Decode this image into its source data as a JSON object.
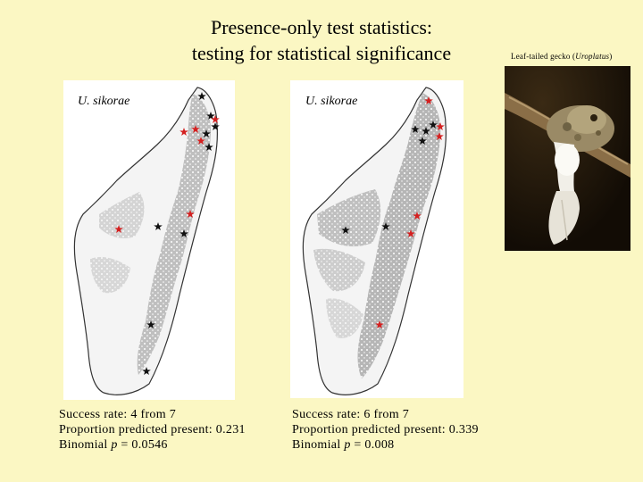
{
  "title": {
    "line1": "Presence-only test statistics:",
    "line2": "testing for statistical significance"
  },
  "photo": {
    "caption_prefix": "Leaf-tailed gecko (",
    "caption_genus": "Uroplatus",
    "caption_suffix": ")"
  },
  "maps": [
    {
      "label": "U. sikorae",
      "stats": {
        "success": "Success rate: 4 from 7",
        "proportion": "Proportion predicted present: 0.231",
        "binomial_prefix": "Binomial ",
        "binomial_var": "p",
        "binomial_value": " = 0.0546"
      }
    },
    {
      "label": "U. sikorae",
      "stats": {
        "success": "Success rate: 6 from 7",
        "proportion": "Proportion predicted present: 0.339",
        "binomial_prefix": "Binomial ",
        "binomial_var": "p",
        "binomial_value": " = 0.008"
      }
    }
  ],
  "colors": {
    "background": "#fbf7c3",
    "predicted_present": "#a8a8a8",
    "island_outline": "#333333",
    "star_black": "#111111",
    "star_red": "#d42020"
  }
}
